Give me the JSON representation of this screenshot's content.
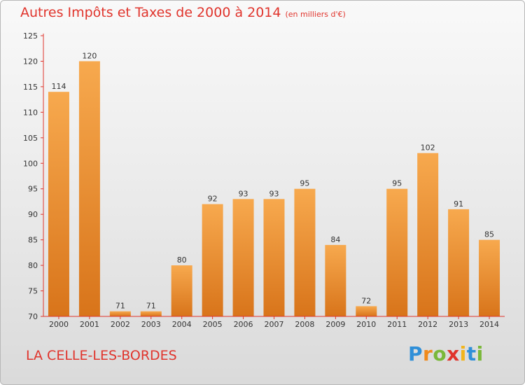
{
  "header": {
    "title": "Autres Impôts et Taxes de 2000 à 2014",
    "subtitle": "(en milliers d'€)"
  },
  "location": "LA CELLE-LES-BORDES",
  "brand": {
    "name": "Proxiti",
    "letters": [
      {
        "ch": "P",
        "color": "#2f8fd8"
      },
      {
        "ch": "r",
        "color": "#f08a1c"
      },
      {
        "ch": "o",
        "color": "#7ab83a"
      },
      {
        "ch": "x",
        "color": "#e0342c"
      },
      {
        "ch": "i",
        "color": "#f2b51c"
      },
      {
        "ch": "t",
        "color": "#2f8fd8"
      },
      {
        "ch": "i",
        "color": "#7ab83a"
      }
    ]
  },
  "colors": {
    "accent": "#e0342c",
    "bar_light": "#f7a94e",
    "bar_dark": "#d8741a",
    "axis": "#e0342c"
  },
  "chart_data": {
    "type": "bar",
    "title": "Autres Impôts et Taxes de 2000 à 2014",
    "subtitle": "(en milliers d'€)",
    "categories": [
      "2000",
      "2001",
      "2002",
      "2003",
      "2004",
      "2005",
      "2006",
      "2007",
      "2008",
      "2009",
      "2010",
      "2011",
      "2012",
      "2013",
      "2014"
    ],
    "values": [
      114,
      120,
      71,
      71,
      80,
      92,
      93,
      93,
      95,
      84,
      72,
      95,
      102,
      91,
      85
    ],
    "ylim": [
      70,
      125
    ],
    "yticks": [
      70,
      75,
      80,
      85,
      90,
      95,
      100,
      105,
      110,
      115,
      120,
      125
    ],
    "grid": false,
    "xlabel": "",
    "ylabel": ""
  }
}
